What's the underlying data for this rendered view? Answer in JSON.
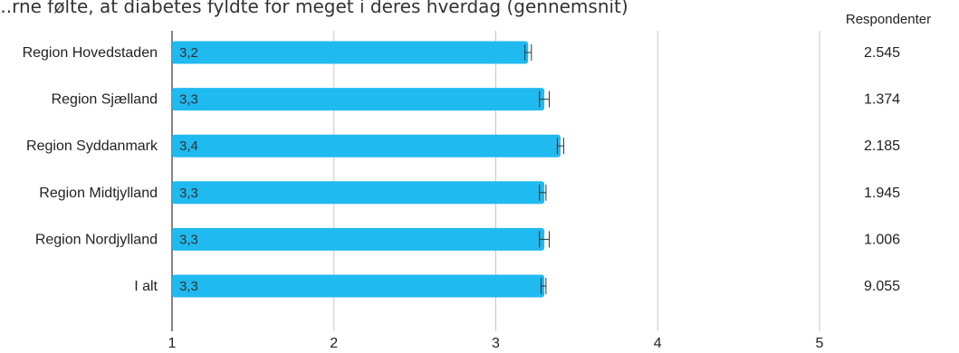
{
  "chart_data": {
    "type": "bar",
    "orientation": "horizontal",
    "title": "...rne følte, at diabetes fyldte for meget i deres hverdag (gennemsnit)",
    "categories": [
      "Region Hovedstaden",
      "Region Sjælland",
      "Region Syddanmark",
      "Region Midtjylland",
      "Region Nordjylland",
      "I alt"
    ],
    "values": [
      3.2,
      3.3,
      3.4,
      3.3,
      3.3,
      3.3
    ],
    "value_labels": [
      "3,2",
      "3,3",
      "3,4",
      "3,3",
      "3,3",
      "3,3"
    ],
    "error_low": [
      3.18,
      3.27,
      3.38,
      3.27,
      3.27,
      3.28
    ],
    "error_high": [
      3.22,
      3.33,
      3.42,
      3.31,
      3.33,
      3.31
    ],
    "xlim": [
      1,
      5
    ],
    "x_ticks": [
      "1",
      "2",
      "3",
      "4",
      "5"
    ],
    "grid": true,
    "respondents_header": "Respondenter",
    "respondents": [
      "2.545",
      "1.374",
      "2.185",
      "1.945",
      "1.006",
      "9.055"
    ],
    "colors": {
      "bar": "#1fbaf0",
      "error": "#333333",
      "grid": "#c8c8c8",
      "axis": "#333333"
    }
  }
}
